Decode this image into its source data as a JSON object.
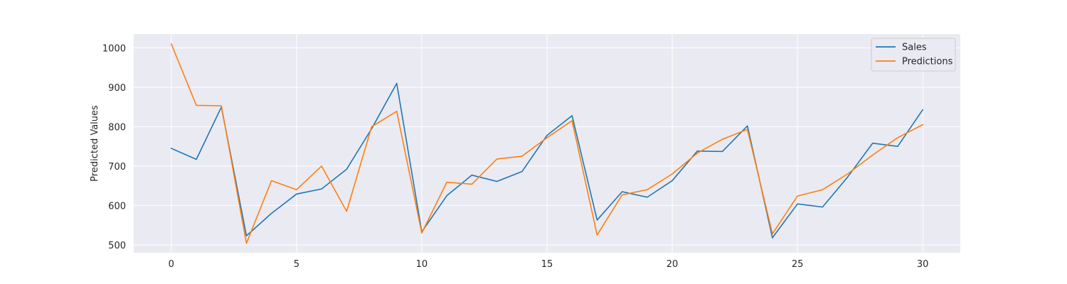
{
  "chart_data": {
    "type": "line",
    "title": "",
    "xlabel": "",
    "ylabel": "Predicted Values",
    "xlim": [
      -1.5,
      31.5
    ],
    "ylim": [
      480,
      1035
    ],
    "xticks": [
      0,
      5,
      10,
      15,
      20,
      25,
      30
    ],
    "yticks": [
      500,
      600,
      700,
      800,
      900,
      1000
    ],
    "grid": true,
    "legend": "top-right",
    "x": [
      0,
      1,
      2,
      3,
      4,
      5,
      6,
      7,
      8,
      9,
      10,
      11,
      12,
      13,
      14,
      15,
      16,
      17,
      18,
      19,
      20,
      21,
      22,
      23,
      24,
      25,
      26,
      27,
      28,
      29,
      30
    ],
    "series": [
      {
        "name": "Sales",
        "color": "#1f77b4",
        "values": [
          745,
          717,
          850,
          523,
          580,
          629,
          642,
          692,
          795,
          910,
          533,
          625,
          677,
          661,
          686,
          778,
          828,
          563,
          635,
          621,
          663,
          738,
          737,
          802,
          518,
          604,
          596,
          672,
          758,
          750,
          843
        ]
      },
      {
        "name": "Predictions",
        "color": "#ff7f0e",
        "values": [
          1010,
          854,
          853,
          504,
          663,
          640,
          700,
          585,
          800,
          839,
          530,
          659,
          654,
          718,
          725,
          772,
          815,
          525,
          627,
          640,
          680,
          733,
          768,
          793,
          528,
          624,
          640,
          680,
          728,
          772,
          805
        ]
      }
    ],
    "background_color": "#eaeaf2"
  }
}
